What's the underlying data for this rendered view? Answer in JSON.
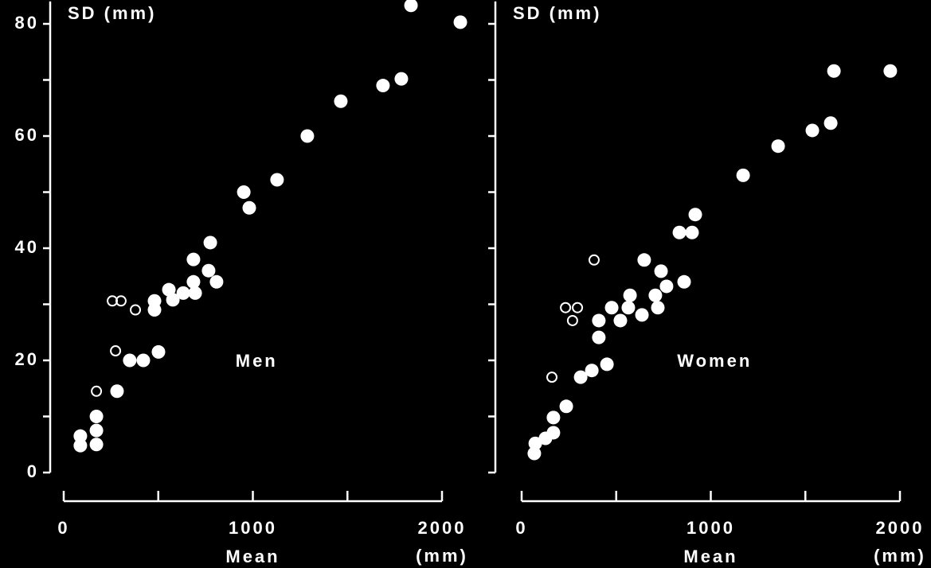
{
  "chart_data": [
    {
      "type": "scatter",
      "ylabel": "SD (mm)",
      "xlabel": "Mean",
      "xunit": "(mm)",
      "annotation": "Men",
      "xlim": [
        0,
        2000
      ],
      "ylim": [
        0,
        84
      ],
      "xticks": [
        0,
        1000,
        2000
      ],
      "xminorticks": [
        500,
        1500
      ],
      "yticks": [
        0,
        20,
        40,
        60,
        80
      ],
      "yminorticks": [
        10,
        30,
        50,
        70
      ],
      "ytick_labels": true,
      "series": [
        {
          "marker": "filled",
          "color": "#ffffff",
          "x": [
            88,
            88,
            173,
            173,
            173,
            282,
            349,
            421,
            501,
            480,
            480,
            556,
            577,
            632,
            686,
            695,
            686,
            775,
            766,
            808,
            952,
            981,
            1128,
            1288,
            1465,
            1688,
            1785,
            1836,
            2097
          ],
          "values": [
            6.5,
            4.8,
            10,
            7.5,
            5,
            14.5,
            20,
            20,
            21.5,
            29,
            30.6,
            32.6,
            30.8,
            32,
            34,
            32,
            38,
            41,
            36,
            34,
            50,
            47.2,
            52.2,
            60,
            66.2,
            69,
            70.2,
            83.3,
            80.3
          ]
        },
        {
          "marker": "open",
          "color": "#ffffff",
          "x": [
            257,
            303,
            379,
            274,
            173
          ],
          "values": [
            30.6,
            30.6,
            29,
            21.7,
            14.5
          ]
        }
      ]
    },
    {
      "type": "scatter",
      "ylabel": "SD (mm)",
      "xlabel": "Mean",
      "xunit": "(mm)",
      "annotation": "Women",
      "xlim": [
        0,
        2000
      ],
      "ylim": [
        0,
        84
      ],
      "xticks": [
        0,
        1000,
        2000
      ],
      "xminorticks": [
        500,
        1500
      ],
      "yticks": [
        0,
        20,
        40,
        60,
        80
      ],
      "yminorticks": [
        10,
        30,
        50,
        70
      ],
      "ytick_labels": false,
      "series": [
        {
          "marker": "filled",
          "color": "#ffffff",
          "x": [
            67,
            72,
            126,
            168,
            168,
            236,
            312,
            371,
            451,
            408,
            408,
            476,
            522,
            564,
            573,
            636,
            648,
            720,
            707,
            737,
            766,
            859,
            834,
            901,
            918,
            1171,
            1356,
            1537,
            1634,
            1651,
            1949
          ],
          "values": [
            3.4,
            5.2,
            6.1,
            7.1,
            9.8,
            11.8,
            17,
            18.2,
            19.3,
            24.1,
            27.1,
            29.4,
            27.1,
            29.4,
            31.6,
            28.1,
            37.9,
            29.4,
            31.6,
            35.9,
            33.2,
            34,
            42.8,
            42.8,
            46,
            53,
            58.2,
            61,
            62.3,
            71.6,
            71.6
          ]
        },
        {
          "marker": "open",
          "color": "#ffffff",
          "x": [
            160,
            232,
            295,
            269,
            383
          ],
          "values": [
            17,
            29.4,
            29.4,
            27.1,
            37.9
          ]
        }
      ]
    }
  ]
}
